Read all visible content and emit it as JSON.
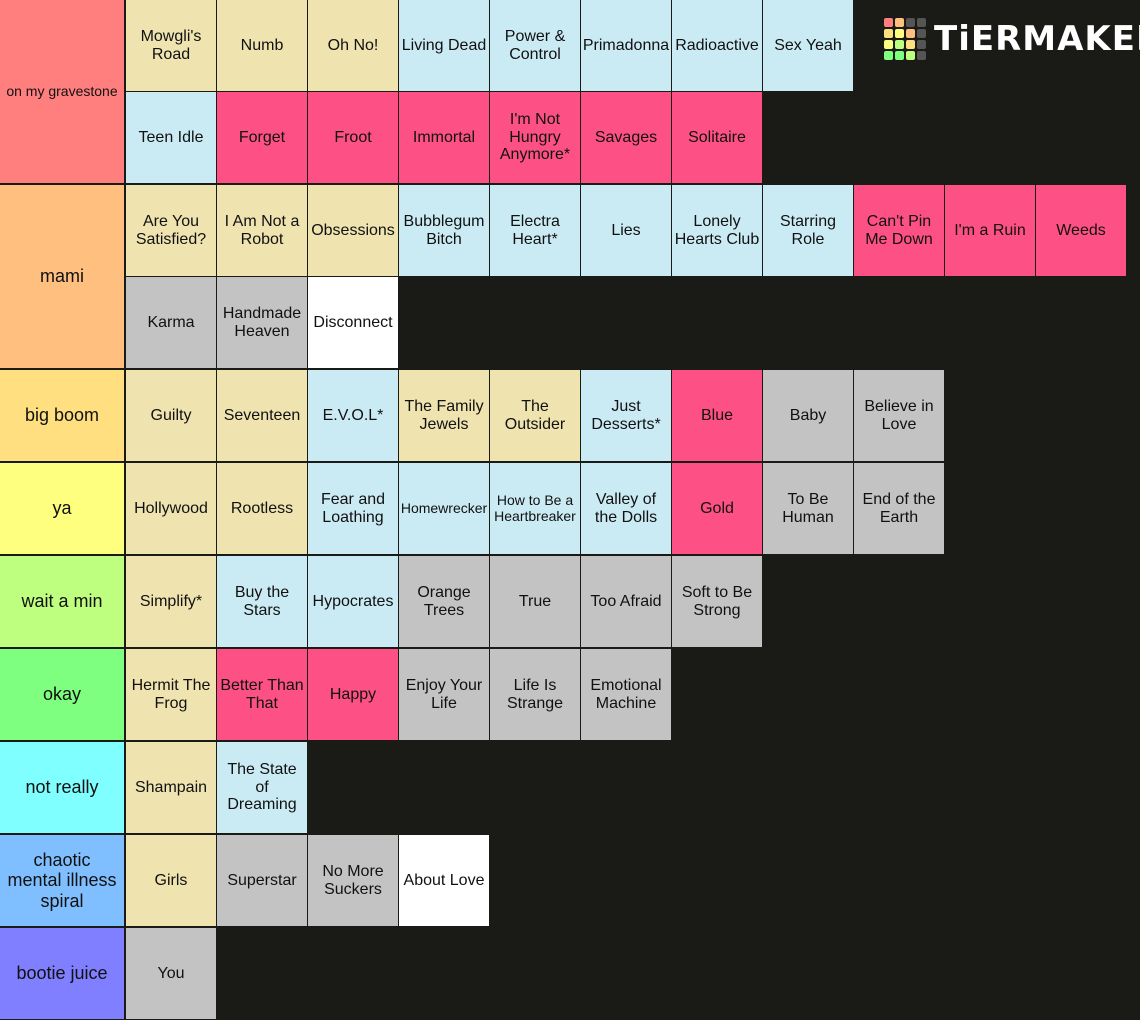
{
  "logo": "TiERMAKER",
  "tiers": [
    {
      "label": "on my gravestone",
      "color": "#ff7f7f",
      "items": [
        {
          "text": "Mowgli's Road",
          "color": "#efe3b0"
        },
        {
          "text": "Numb",
          "color": "#efe3b0"
        },
        {
          "text": "Oh No!",
          "color": "#efe3b0"
        },
        {
          "text": "Living Dead",
          "color": "#cbebf4"
        },
        {
          "text": "Power & Control",
          "color": "#cbebf4"
        },
        {
          "text": "Primadonna",
          "color": "#cbebf4"
        },
        {
          "text": "Radioactive",
          "color": "#cbebf4"
        },
        {
          "text": "Sex Yeah",
          "color": "#cbebf4"
        },
        {
          "text": "Teen Idle",
          "color": "#cbebf4"
        },
        {
          "text": "Forget",
          "color": "#fd5185"
        },
        {
          "text": "Froot",
          "color": "#fd5185"
        },
        {
          "text": "Immortal",
          "color": "#fd5185"
        },
        {
          "text": "I'm Not Hungry Anymore*",
          "color": "#fd5185"
        },
        {
          "text": "Savages",
          "color": "#fd5185"
        },
        {
          "text": "Solitaire",
          "color": "#fd5185"
        }
      ]
    },
    {
      "label": "mami",
      "color": "#ffbf7f",
      "items": [
        {
          "text": "Are You Satisfied?",
          "color": "#efe3b0"
        },
        {
          "text": "I Am Not a Robot",
          "color": "#efe3b0"
        },
        {
          "text": "Obsessions",
          "color": "#efe3b0"
        },
        {
          "text": "Bubblegum Bitch",
          "color": "#cbebf4"
        },
        {
          "text": "Electra Heart*",
          "color": "#cbebf4"
        },
        {
          "text": "Lies",
          "color": "#cbebf4"
        },
        {
          "text": "Lonely Hearts Club",
          "color": "#cbebf4"
        },
        {
          "text": "Starring Role",
          "color": "#cbebf4"
        },
        {
          "text": "Can't Pin Me Down",
          "color": "#fd5185"
        },
        {
          "text": "I'm a Ruin",
          "color": "#fd5185"
        },
        {
          "text": "Weeds",
          "color": "#fd5185"
        },
        {
          "text": "Karma",
          "color": "#c3c3c3"
        },
        {
          "text": "Handmade Heaven",
          "color": "#c3c3c3"
        },
        {
          "text": "Disconnect",
          "color": "#ffffff"
        }
      ]
    },
    {
      "label": "big boom",
      "color": "#ffdf7f",
      "items": [
        {
          "text": "Guilty",
          "color": "#efe3b0"
        },
        {
          "text": "Seventeen",
          "color": "#efe3b0"
        },
        {
          "text": "E.V.O.L*",
          "color": "#cbebf4"
        },
        {
          "text": "The Family Jewels",
          "color": "#efe3b0"
        },
        {
          "text": "The Outsider",
          "color": "#efe3b0"
        },
        {
          "text": "Just Desserts*",
          "color": "#cbebf4"
        },
        {
          "text": "Blue",
          "color": "#fd5185"
        },
        {
          "text": "Baby",
          "color": "#c3c3c3"
        },
        {
          "text": "Believe in Love",
          "color": "#c3c3c3"
        }
      ]
    },
    {
      "label": "ya",
      "color": "#ffff7f",
      "items": [
        {
          "text": "Hollywood",
          "color": "#efe3b0"
        },
        {
          "text": "Rootless",
          "color": "#efe3b0"
        },
        {
          "text": "Fear and Loathing",
          "color": "#cbebf4"
        },
        {
          "text": "Homewrecker",
          "color": "#cbebf4"
        },
        {
          "text": "How to Be a Heartbreaker",
          "color": "#cbebf4"
        },
        {
          "text": "Valley of the Dolls",
          "color": "#cbebf4"
        },
        {
          "text": "Gold",
          "color": "#fd5185"
        },
        {
          "text": "To Be Human",
          "color": "#c3c3c3"
        },
        {
          "text": "End of the Earth",
          "color": "#c3c3c3"
        }
      ]
    },
    {
      "label": "wait a min",
      "color": "#bfff7f",
      "items": [
        {
          "text": "Simplify*",
          "color": "#efe3b0"
        },
        {
          "text": "Buy the Stars",
          "color": "#cbebf4"
        },
        {
          "text": "Hypocrates",
          "color": "#cbebf4"
        },
        {
          "text": "Orange Trees",
          "color": "#c3c3c3"
        },
        {
          "text": "True",
          "color": "#c3c3c3"
        },
        {
          "text": "Too Afraid",
          "color": "#c3c3c3"
        },
        {
          "text": "Soft to Be Strong",
          "color": "#c3c3c3"
        }
      ]
    },
    {
      "label": "okay",
      "color": "#7fff7f",
      "items": [
        {
          "text": "Hermit The Frog",
          "color": "#efe3b0"
        },
        {
          "text": "Better Than That",
          "color": "#fd5185"
        },
        {
          "text": "Happy",
          "color": "#fd5185"
        },
        {
          "text": "Enjoy Your Life",
          "color": "#c3c3c3"
        },
        {
          "text": "Life Is Strange",
          "color": "#c3c3c3"
        },
        {
          "text": "Emotional Machine",
          "color": "#c3c3c3"
        }
      ]
    },
    {
      "label": "not really",
      "color": "#7fffff",
      "items": [
        {
          "text": "Shampain",
          "color": "#efe3b0"
        },
        {
          "text": "The State of Dreaming",
          "color": "#cbebf4"
        }
      ]
    },
    {
      "label": "chaotic mental illness spiral",
      "color": "#7fbfff",
      "items": [
        {
          "text": "Girls",
          "color": "#efe3b0"
        },
        {
          "text": "Superstar",
          "color": "#c3c3c3"
        },
        {
          "text": "No More Suckers",
          "color": "#c3c3c3"
        },
        {
          "text": "About Love",
          "color": "#ffffff"
        }
      ]
    },
    {
      "label": "bootie juice",
      "color": "#7f7fff",
      "items": [
        {
          "text": "You",
          "color": "#c3c3c3"
        }
      ]
    }
  ]
}
